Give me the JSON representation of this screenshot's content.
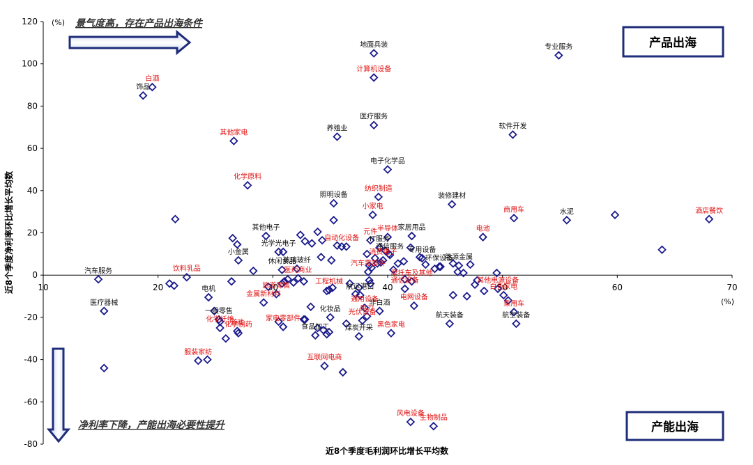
{
  "chart_data": {
    "type": "scatter",
    "xlabel": "近8个季度毛利润环比增长平均数",
    "ylabel": "近8个季度净利率环比增长平均数",
    "x_unit": "(%)",
    "y_unit": "(%)",
    "xlim": [
      10,
      70
    ],
    "ylim": [
      -80,
      120
    ],
    "x_ticks": [
      "10",
      "20",
      "30",
      "40",
      "50",
      "60",
      "70"
    ],
    "y_ticks": [
      "120",
      "100",
      "80",
      "60",
      "40",
      "20",
      "0",
      "-20",
      "-40",
      "-60",
      "-80"
    ],
    "grid": false,
    "marker": "diamond-open",
    "colors": {
      "marker": "#1a1a8c",
      "label_black": "#111111",
      "label_red": "#e01010",
      "arrow": "#1f2d7a",
      "box_border": "#1f2d7a"
    },
    "annotations": {
      "top_note": "景气度高，存在产品出海条件",
      "bottom_note": "净利率下降，产能出海必要性提升",
      "box_top": "产品出海",
      "box_bottom": "产能出海"
    },
    "points": [
      {
        "label": "地面兵装",
        "x": 38.8,
        "y": 105,
        "color": "black"
      },
      {
        "label": "计算机设备",
        "x": 38.8,
        "y": 93.5,
        "color": "red"
      },
      {
        "label": "专业服务",
        "x": 54.9,
        "y": 104,
        "color": "black"
      },
      {
        "label": "白酒",
        "x": 19.5,
        "y": 89,
        "color": "red"
      },
      {
        "label": "饰品",
        "x": 18.7,
        "y": 85,
        "color": "black"
      },
      {
        "label": "医疗服务",
        "x": 38.8,
        "y": 71,
        "color": "black"
      },
      {
        "label": "养殖业",
        "x": 35.6,
        "y": 65.5,
        "color": "black"
      },
      {
        "label": "软件开发",
        "x": 50.9,
        "y": 66.5,
        "color": "black"
      },
      {
        "label": "其他家电",
        "x": 26.6,
        "y": 63.5,
        "color": "red"
      },
      {
        "label": "电子化学品",
        "x": 40,
        "y": 50,
        "color": "black"
      },
      {
        "label": "化学原料",
        "x": 27.8,
        "y": 42.5,
        "color": "red"
      },
      {
        "label": "照明设备",
        "x": 35.3,
        "y": 34,
        "color": "black"
      },
      {
        "label": "纺织制造",
        "x": 39.2,
        "y": 37,
        "color": "red"
      },
      {
        "label": "装修建材",
        "x": 45.6,
        "y": 33.5,
        "color": "black"
      },
      {
        "label": "小家电",
        "x": 38.7,
        "y": 28.5,
        "color": "red"
      },
      {
        "label": "商用车",
        "x": 51,
        "y": 27,
        "color": "red"
      },
      {
        "label": "水泥",
        "x": 55.6,
        "y": 26,
        "color": "black"
      },
      {
        "label": "酒店餐饮",
        "x": 68,
        "y": 26.5,
        "color": "red"
      },
      {
        "label": "其他电子",
        "x": 29.4,
        "y": 18.5,
        "color": "black"
      },
      {
        "label": "元件",
        "x": 38.5,
        "y": 16.5,
        "color": "red"
      },
      {
        "label": "半导体",
        "x": 40,
        "y": 18,
        "color": "red"
      },
      {
        "label": "家居用品",
        "x": 42.1,
        "y": 18.5,
        "color": "black"
      },
      {
        "label": "电池",
        "x": 48.3,
        "y": 18,
        "color": "red"
      },
      {
        "label": "IT服务",
        "x": 39.3,
        "y": 13,
        "color": "black"
      },
      {
        "label": "自动化设备",
        "x": 36,
        "y": 13.5,
        "color": "red"
      },
      {
        "label": "通信服务",
        "x": 40.2,
        "y": 9.5,
        "color": "black"
      },
      {
        "label": "专用设备",
        "x": 43,
        "y": 8,
        "color": "black"
      },
      {
        "label": "消费电子",
        "x": 39.6,
        "y": 7,
        "color": "red"
      },
      {
        "label": "光学光电子",
        "x": 30.5,
        "y": 11,
        "color": "black"
      },
      {
        "label": "小金属",
        "x": 27,
        "y": 7,
        "color": "black"
      },
      {
        "label": "环保设备",
        "x": 44.5,
        "y": 4,
        "color": "black"
      },
      {
        "label": "能源金属",
        "x": 46.2,
        "y": 4.5,
        "color": "black"
      },
      {
        "label": "玻璃玻纤",
        "x": 32.1,
        "y": 3,
        "color": "black"
      },
      {
        "label": "汽车服务",
        "x": 14.8,
        "y": -2,
        "color": "black"
      },
      {
        "label": "饮料乳品",
        "x": 22.5,
        "y": -1,
        "color": "red"
      },
      {
        "label": "休闲食品",
        "x": 30.8,
        "y": 2.5,
        "color": "black"
      },
      {
        "label": "汽车零部件",
        "x": 38.3,
        "y": 1.5,
        "color": "red"
      },
      {
        "label": "摩托车及其他",
        "x": 42.1,
        "y": -3,
        "color": "red"
      },
      {
        "label": "医药商业",
        "x": 32.2,
        "y": -1.5,
        "color": "red"
      },
      {
        "label": "工程机械",
        "x": 34.9,
        "y": -7,
        "color": "red"
      },
      {
        "label": "电机",
        "x": 24.4,
        "y": -10.5,
        "color": "black"
      },
      {
        "label": "旅游零售",
        "x": 30.3,
        "y": -9,
        "color": "red"
      },
      {
        "label": "航运港口",
        "x": 37.6,
        "y": -9.5,
        "color": "black"
      },
      {
        "label": "通信设备",
        "x": 41.5,
        "y": -6.5,
        "color": "red"
      },
      {
        "label": "电网设备",
        "x": 42.3,
        "y": -14.5,
        "color": "red"
      },
      {
        "label": "其他电源设备",
        "x": 49.6,
        "y": -6.5,
        "color": "red"
      },
      {
        "label": "白色家电",
        "x": 50.1,
        "y": -9.5,
        "color": "red"
      },
      {
        "label": "乘用车",
        "x": 51.0,
        "y": -17.5,
        "color": "red"
      },
      {
        "label": "金属新材料",
        "x": 29.2,
        "y": -13,
        "color": "red"
      },
      {
        "label": "一般零售",
        "x": 25.3,
        "y": -21,
        "color": "black"
      },
      {
        "label": "化妆品",
        "x": 35,
        "y": -20,
        "color": "black"
      },
      {
        "label": "通用设备",
        "x": 38,
        "y": -15.5,
        "color": "red"
      },
      {
        "label": "电力",
        "x": 38.2,
        "y": -19.5,
        "color": "red"
      },
      {
        "label": "非白酒",
        "x": 39.3,
        "y": -17,
        "color": "black"
      },
      {
        "label": "航天装备",
        "x": 45.4,
        "y": -23,
        "color": "black"
      },
      {
        "label": "航空装备",
        "x": 51.2,
        "y": -23,
        "color": "black"
      },
      {
        "label": "医疗器械",
        "x": 15.3,
        "y": -17,
        "color": "black"
      },
      {
        "label": "化学纤维",
        "x": 25.4,
        "y": -25,
        "color": "red"
      },
      {
        "label": "化学制药",
        "x": 27,
        "y": -27.5,
        "color": "red"
      },
      {
        "label": "家电零部件",
        "x": 30.9,
        "y": -24.5,
        "color": "red"
      },
      {
        "label": "光伏设备",
        "x": 37.8,
        "y": -21.5,
        "color": "red"
      },
      {
        "label": "煤炭开采",
        "x": 37.5,
        "y": -29,
        "color": "black"
      },
      {
        "label": "黑色家电",
        "x": 40.3,
        "y": -27.5,
        "color": "red"
      },
      {
        "label": "游戏",
        "x": 26.9,
        "y": -26.5,
        "color": "red"
      },
      {
        "label": "食品加工",
        "x": 33.7,
        "y": -28.5,
        "color": "black"
      },
      {
        "label": "服装家纺",
        "x": 23.5,
        "y": -40.5,
        "color": "red"
      },
      {
        "label": "互联网电商",
        "x": 34.5,
        "y": -43,
        "color": "red"
      },
      {
        "label": "风电设备",
        "x": 42,
        "y": -69.5,
        "color": "red"
      },
      {
        "label": "生物制品",
        "x": 44,
        "y": -71.5,
        "color": "red"
      },
      {
        "x": 21.5,
        "y": 26.5
      },
      {
        "x": 26.5,
        "y": 17.5
      },
      {
        "x": 26.9,
        "y": 14.5
      },
      {
        "x": 30.9,
        "y": 11
      },
      {
        "x": 32.4,
        "y": 19
      },
      {
        "x": 32.8,
        "y": 16
      },
      {
        "x": 33.4,
        "y": 15
      },
      {
        "x": 33.9,
        "y": 20.5
      },
      {
        "x": 34.2,
        "y": 8.5
      },
      {
        "x": 34.3,
        "y": 16.5
      },
      {
        "x": 35.1,
        "y": 7
      },
      {
        "x": 35.3,
        "y": 26
      },
      {
        "x": 35.6,
        "y": 14
      },
      {
        "x": 36.4,
        "y": 13.5
      },
      {
        "x": 38.2,
        "y": 10
      },
      {
        "x": 38.4,
        "y": 4.5
      },
      {
        "x": 38.6,
        "y": 3.5
      },
      {
        "x": 38.9,
        "y": 8
      },
      {
        "x": 39.1,
        "y": 5.5
      },
      {
        "x": 39.4,
        "y": 6
      },
      {
        "x": 39.8,
        "y": 11.5
      },
      {
        "x": 40.1,
        "y": 10
      },
      {
        "x": 40.5,
        "y": 2.5
      },
      {
        "x": 40.9,
        "y": 5.5
      },
      {
        "x": 41.4,
        "y": 6.5
      },
      {
        "x": 42.0,
        "y": 13
      },
      {
        "x": 42.8,
        "y": 8.5
      },
      {
        "x": 43.3,
        "y": 5
      },
      {
        "x": 44.1,
        "y": 3
      },
      {
        "x": 44.6,
        "y": 4
      },
      {
        "x": 45.7,
        "y": 5.5
      },
      {
        "x": 46.1,
        "y": 1.5
      },
      {
        "x": 46.6,
        "y": 1
      },
      {
        "x": 47.2,
        "y": 5
      },
      {
        "x": 47.8,
        "y": -2.5
      },
      {
        "x": 48.4,
        "y": -7.5
      },
      {
        "x": 49.5,
        "y": 1
      },
      {
        "x": 21.0,
        "y": -4
      },
      {
        "x": 21.4,
        "y": -5
      },
      {
        "x": 26.4,
        "y": -3
      },
      {
        "x": 28.3,
        "y": 2
      },
      {
        "x": 29.6,
        "y": -5.5
      },
      {
        "x": 30.8,
        "y": -4
      },
      {
        "x": 31.0,
        "y": -3
      },
      {
        "x": 31.3,
        "y": -2
      },
      {
        "x": 31.8,
        "y": -3.5
      },
      {
        "x": 32.7,
        "y": -3
      },
      {
        "x": 34.7,
        "y": -7.5
      },
      {
        "x": 35.2,
        "y": -6
      },
      {
        "x": 36.7,
        "y": -4
      },
      {
        "x": 37.5,
        "y": -6
      },
      {
        "x": 38.4,
        "y": -2.5
      },
      {
        "x": 38.5,
        "y": -4
      },
      {
        "x": 41.5,
        "y": -2
      },
      {
        "x": 45.7,
        "y": -9.5
      },
      {
        "x": 46.9,
        "y": -10
      },
      {
        "x": 47.6,
        "y": -4.5
      },
      {
        "x": 50.5,
        "y": -12
      },
      {
        "x": 24.9,
        "y": -17
      },
      {
        "x": 25.4,
        "y": -22
      },
      {
        "x": 30.5,
        "y": -22
      },
      {
        "x": 32.7,
        "y": -21
      },
      {
        "x": 33.3,
        "y": -15
      },
      {
        "x": 33.9,
        "y": -25
      },
      {
        "x": 34.4,
        "y": -26
      },
      {
        "x": 34.7,
        "y": -28
      },
      {
        "x": 34.9,
        "y": -27
      },
      {
        "x": 36.4,
        "y": -23
      },
      {
        "x": 37.2,
        "y": -9
      },
      {
        "x": 24.3,
        "y": -40
      },
      {
        "x": 25.9,
        "y": -30
      },
      {
        "x": 32.8,
        "y": -21
      },
      {
        "x": 36.1,
        "y": -46
      },
      {
        "x": 15.3,
        "y": -44
      },
      {
        "x": 63.9,
        "y": 12
      },
      {
        "x": 59.8,
        "y": 28.5
      }
    ]
  }
}
